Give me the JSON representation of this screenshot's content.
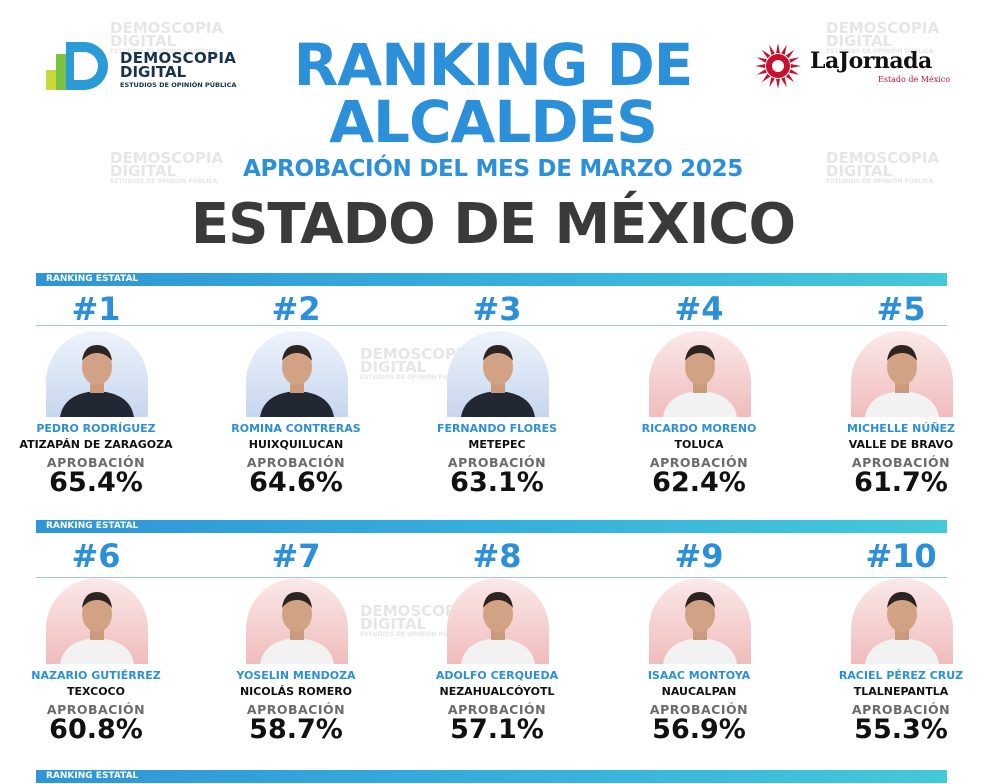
{
  "header": {
    "logo_left": {
      "line1": "DEMOSCOPIA",
      "line2": "DIGITAL",
      "tagline": "ESTUDIOS DE OPINIÓN PÚBLICA"
    },
    "logo_right": {
      "name": "LaJornada",
      "subtitle": "Estado de México"
    },
    "title_line1": "RANKING DE",
    "title_line2": "ALCALDES",
    "subtitle": "APROBACIÓN DEL MES DE MARZO 2025",
    "state": "ESTADO DE MÉXICO"
  },
  "watermark": {
    "line1": "DEMOSCOPIA",
    "line2": "DIGITAL",
    "tagline": "ESTUDIOS DE OPINIÓN PÚBLICA"
  },
  "section_label": "RANKING ESTATAL",
  "approval_label": "APROBACIÓN",
  "colors": {
    "accent": "#2b8fd9",
    "party_red": "#c8102e",
    "pan_blue": "#1d4f9c"
  },
  "rows": [
    [
      {
        "rank": "#1",
        "name": "PEDRO RODRÍGUEZ",
        "municipality": "ATIZAPÁN DE ZARAGOZA",
        "approval": "65.4%",
        "approval_value": 65.4,
        "bg": "blue"
      },
      {
        "rank": "#2",
        "name": "ROMINA CONTRERAS",
        "municipality": "HUIXQUILUCAN",
        "approval": "64.6%",
        "approval_value": 64.6,
        "bg": "blue"
      },
      {
        "rank": "#3",
        "name": "FERNANDO FLORES",
        "municipality": "METEPEC",
        "approval": "63.1%",
        "approval_value": 63.1,
        "bg": "blue"
      },
      {
        "rank": "#4",
        "name": "RICARDO MORENO",
        "municipality": "TOLUCA",
        "approval": "62.4%",
        "approval_value": 62.4,
        "bg": "red"
      },
      {
        "rank": "#5",
        "name": "MICHELLE NÚÑEZ",
        "municipality": "VALLE DE BRAVO",
        "approval": "61.7%",
        "approval_value": 61.7,
        "bg": "red"
      }
    ],
    [
      {
        "rank": "#6",
        "name": "NAZARIO GUTIÉRREZ",
        "municipality": "TEXCOCO",
        "approval": "60.8%",
        "approval_value": 60.8,
        "bg": "red"
      },
      {
        "rank": "#7",
        "name": "YOSELIN MENDOZA",
        "municipality": "NICOLÁS ROMERO",
        "approval": "58.7%",
        "approval_value": 58.7,
        "bg": "red"
      },
      {
        "rank": "#8",
        "name": "ADOLFO CERQUEDA",
        "municipality": "NEZAHUALCÓYOTL",
        "approval": "57.1%",
        "approval_value": 57.1,
        "bg": "red"
      },
      {
        "rank": "#9",
        "name": "ISAAC MONTOYA",
        "municipality": "NAUCALPAN",
        "approval": "56.9%",
        "approval_value": 56.9,
        "bg": "red"
      },
      {
        "rank": "#10",
        "name": "RACIEL PÉREZ CRUZ",
        "municipality": "TLALNEPANTLA",
        "approval": "55.3%",
        "approval_value": 55.3,
        "bg": "red"
      }
    ]
  ]
}
